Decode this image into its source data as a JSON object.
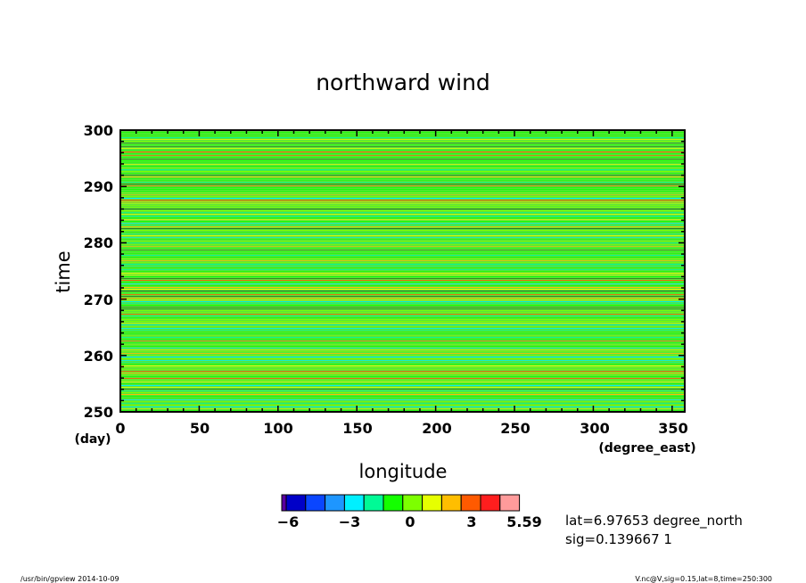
{
  "chart_data": {
    "type": "heatmap",
    "title": "northward wind",
    "xlabel": "longitude",
    "xunit": "(degree_east)",
    "ylabel": "time",
    "yunit": "(day)",
    "xlim": [
      0,
      358
    ],
    "ylim": [
      250,
      300
    ],
    "xticks": [
      "0",
      "50",
      "100",
      "150",
      "200",
      "250",
      "300",
      "350"
    ],
    "yticks": [
      "250",
      "260",
      "270",
      "280",
      "290",
      "300"
    ],
    "colorbar": {
      "colors": [
        "#5a00a0",
        "#0000c8",
        "#0a46ff",
        "#1e96ff",
        "#00f0ff",
        "#00fa96",
        "#14ff00",
        "#7dff00",
        "#e6ff00",
        "#ffbe00",
        "#ff5a00",
        "#ff1e1e",
        "#ff9b9b"
      ],
      "labels": [
        "−6",
        "−3",
        "0",
        "3",
        "5.59"
      ]
    },
    "field_note": "dominant value near 0 (green) with thin horizontal banding across all longitudes"
  },
  "info": {
    "lat": "lat=6.97653 degree_north",
    "sig": "sig=0.139667 1"
  },
  "footer": {
    "left": "/usr/bin/gpview   2014-10-09",
    "right": "V.nc@V,sig=0.15,lat=8,time=250:300"
  }
}
